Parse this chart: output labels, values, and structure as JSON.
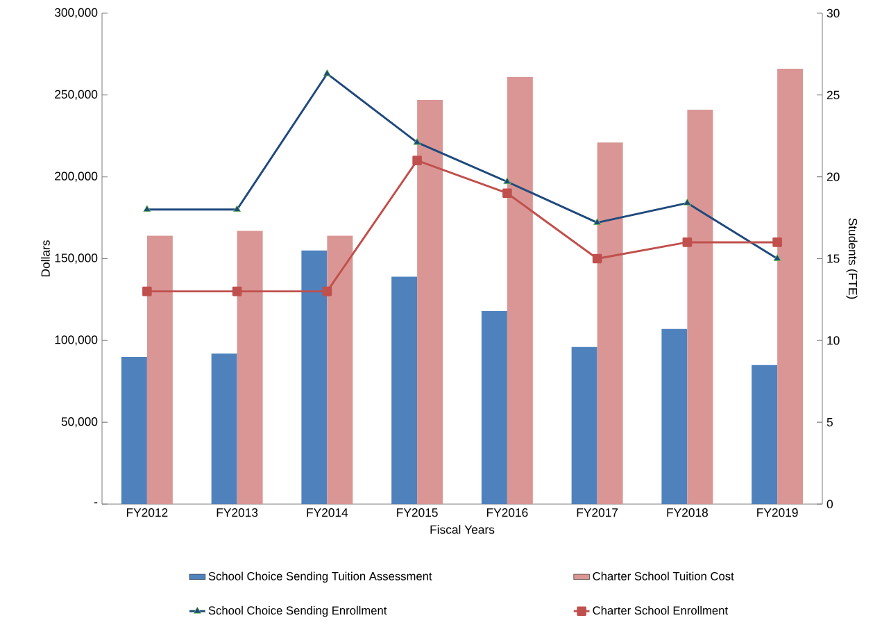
{
  "chart_data": {
    "type": "bar",
    "xlabel": "Fiscal Years",
    "ylabel": "Dollars",
    "y2label": "Students (FTE)",
    "categories": [
      "FY2012",
      "FY2013",
      "FY2014",
      "FY2015",
      "FY2016",
      "FY2017",
      "FY2018",
      "FY2019"
    ],
    "ylim": [
      0,
      300000
    ],
    "yticks": [
      {
        "value": 0,
        "label": "-"
      },
      {
        "value": 50000,
        "label": "50,000"
      },
      {
        "value": 100000,
        "label": "100,000"
      },
      {
        "value": 150000,
        "label": "150,000"
      },
      {
        "value": 200000,
        "label": "200,000"
      },
      {
        "value": 250000,
        "label": "250,000"
      },
      {
        "value": 300000,
        "label": "300,000"
      }
    ],
    "y2lim": [
      0,
      30
    ],
    "y2ticks": [
      0,
      5,
      10,
      15,
      20,
      25,
      30
    ],
    "legend": "bottom",
    "series": [
      {
        "name": "School Choice Sending Tuition Assessment",
        "color": "#4f81bd",
        "values": [
          90000,
          92000,
          155000,
          139000,
          118000,
          96000,
          107000,
          85000
        ]
      },
      {
        "name": "Charter School Tuition Cost",
        "color": "#d99694",
        "values": [
          164000,
          167000,
          164000,
          247000,
          261000,
          221000,
          241000,
          266000
        ]
      },
      {
        "name": "School Choice Sending Enrollment",
        "type": "line",
        "axis": "y2",
        "marker": "triangle",
        "color": "#1f497d",
        "values": [
          18,
          18,
          26.3,
          22.1,
          19.7,
          17.2,
          18.4,
          15
        ]
      },
      {
        "name": "Charter School Enrollment",
        "type": "line",
        "axis": "y2",
        "marker": "square",
        "color": "#c0504d",
        "values": [
          13,
          13,
          13,
          21,
          19,
          15,
          16,
          16
        ]
      }
    ]
  }
}
